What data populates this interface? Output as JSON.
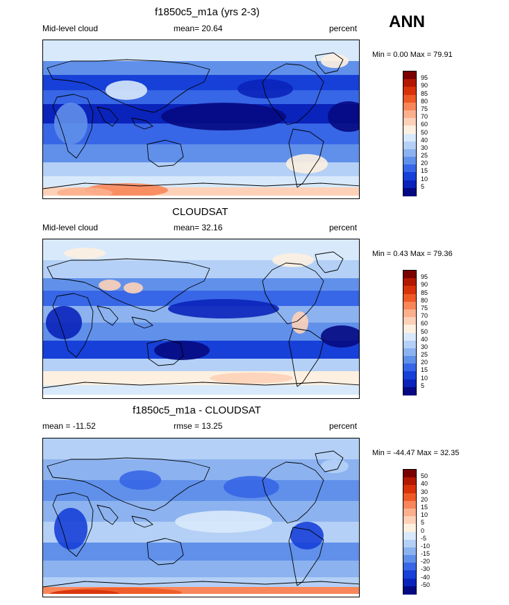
{
  "season": "ANN",
  "panels": [
    {
      "title": "f1850c5_m1a (yrs 2-3)",
      "left_label": "Mid-level cloud",
      "center_label": "mean=  20.64",
      "right_label": "percent",
      "minmax": "Min =   0.00 Max =  79.91",
      "levels": [
        "95",
        "90",
        "85",
        "80",
        "75",
        "70",
        "60",
        "50",
        "40",
        "30",
        "25",
        "20",
        "15",
        "10",
        "5"
      ],
      "colors": [
        "#7a0000",
        "#b21800",
        "#d8320a",
        "#ee5a26",
        "#f9865a",
        "#fcaf8c",
        "#fdd1b8",
        "#fdf0e0",
        "#d8e9fb",
        "#b4d0f6",
        "#8cb2ef",
        "#6090ea",
        "#3766e6",
        "#1740d8",
        "#0a23ba",
        "#050a82"
      ],
      "style": "model"
    },
    {
      "title": "CLOUDSAT",
      "left_label": "Mid-level cloud",
      "center_label": "mean=  32.16",
      "right_label": "percent",
      "minmax": "Min =   0.43 Max =  79.36",
      "levels": [
        "95",
        "90",
        "85",
        "80",
        "75",
        "70",
        "60",
        "50",
        "40",
        "30",
        "25",
        "20",
        "15",
        "10",
        "5"
      ],
      "colors": [
        "#7a0000",
        "#b21800",
        "#d8320a",
        "#ee5a26",
        "#f9865a",
        "#fcaf8c",
        "#fdd1b8",
        "#fdf0e0",
        "#d8e9fb",
        "#b4d0f6",
        "#8cb2ef",
        "#6090ea",
        "#3766e6",
        "#1740d8",
        "#0a23ba",
        "#050a82"
      ],
      "style": "obs"
    },
    {
      "title": "f1850c5_m1a - CLOUDSAT",
      "left_label": "mean = -11.52",
      "center_label": "rmse =  13.25",
      "right_label": "percent",
      "minmax": "Min = -44.47 Max =  32.35",
      "levels": [
        "50",
        "40",
        "30",
        "20",
        "15",
        "10",
        "5",
        "0",
        "-5",
        "-10",
        "-15",
        "-20",
        "-30",
        "-40",
        "-50"
      ],
      "colors": [
        "#7a0000",
        "#b21800",
        "#d8320a",
        "#ee5a26",
        "#f9865a",
        "#fcaf8c",
        "#fdd1b8",
        "#fdf0e0",
        "#d8e9fb",
        "#b4d0f6",
        "#8cb2ef",
        "#6090ea",
        "#3766e6",
        "#1740d8",
        "#0a23ba",
        "#050a82"
      ],
      "style": "diff"
    }
  ]
}
